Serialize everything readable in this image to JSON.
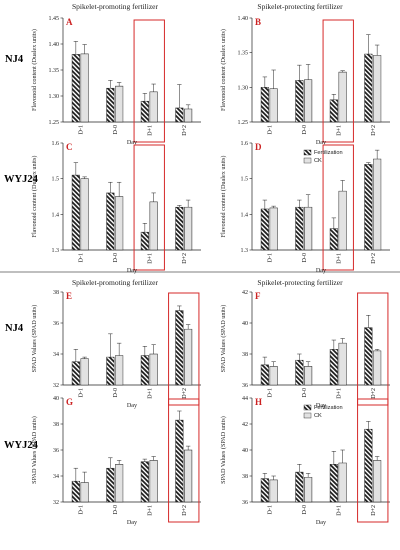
{
  "figure": {
    "section_titles": [
      "Spikelet-promoting fertilizer",
      "Spikelet-protecting fertilizer",
      "Spikelet-promoting fertilizer",
      "Spikelet-protecting fertilizer"
    ],
    "variety_labels": [
      "NJ4",
      "WYJ24",
      "NJ4",
      "WYJ24"
    ],
    "colors": {
      "panel_letter": "#cc2222",
      "variety": "#cc2222",
      "highlight_box": "#d62a2a",
      "bar_edge": "#222222"
    }
  },
  "chart_data": [
    {
      "panel": "A",
      "type": "bar",
      "ylabel": "Flavonoid content (Dualex units)",
      "xlabel": "Day",
      "categories": [
        "D-1",
        "D-0",
        "D+1",
        "D+2"
      ],
      "ylim": [
        1.25,
        1.45
      ],
      "yticks": [
        "1.25",
        "1.30",
        "1.35",
        "1.40",
        "1.45"
      ],
      "series": [
        {
          "values": [
            1.38,
            1.315,
            1.29,
            1.277
          ],
          "errors": [
            0.025,
            0.015,
            0.015,
            0.045
          ]
        },
        {
          "values": [
            1.381,
            1.319,
            1.308,
            1.275
          ],
          "errors": [
            0.018,
            0.007,
            0.015,
            0.008
          ]
        }
      ],
      "highlight": 2
    },
    {
      "panel": "B",
      "type": "bar",
      "ylabel": "Flavonoid content (Dualex units)",
      "xlabel": "Day",
      "categories": [
        "D-1",
        "D-0",
        "D+1",
        "D+2"
      ],
      "ylim": [
        1.25,
        1.4
      ],
      "yticks": [
        "1.25",
        "1.30",
        "1.35",
        "1.40"
      ],
      "series": [
        {
          "values": [
            1.3,
            1.31,
            1.282,
            1.348
          ],
          "errors": [
            0.015,
            0.022,
            0.008,
            0.028
          ]
        },
        {
          "values": [
            1.298,
            1.311,
            1.322,
            1.346
          ],
          "errors": [
            0.027,
            0.022,
            0.002,
            0.015
          ]
        }
      ],
      "highlight": 2
    },
    {
      "panel": "C",
      "type": "bar",
      "ylabel": "Flavonoid content (Dualex units)",
      "xlabel": "Day",
      "categories": [
        "D-1",
        "D-0",
        "D+1",
        "D+2"
      ],
      "ylim": [
        1.3,
        1.6
      ],
      "yticks": [
        "1.3",
        "1.4",
        "1.5",
        "1.6"
      ],
      "series": [
        {
          "values": [
            1.51,
            1.46,
            1.35,
            1.42
          ],
          "errors": [
            0.035,
            0.03,
            0.025,
            0.005
          ]
        },
        {
          "values": [
            1.5,
            1.45,
            1.435,
            1.42
          ],
          "errors": [
            0.005,
            0.04,
            0.025,
            0.02
          ]
        }
      ],
      "highlight": 2
    },
    {
      "panel": "D",
      "type": "bar",
      "ylabel": "Flavonoid content (Dualex units)",
      "xlabel": "Day",
      "categories": [
        "D-1",
        "D-0",
        "D+1",
        "D+2"
      ],
      "ylim": [
        1.3,
        1.6
      ],
      "yticks": [
        "1.3",
        "1.4",
        "1.5",
        "1.6"
      ],
      "legend": [
        "Fertilization",
        "CK"
      ],
      "series": [
        {
          "values": [
            1.415,
            1.42,
            1.36,
            1.54
          ],
          "errors": [
            0.025,
            0.02,
            0.03,
            0.005
          ]
        },
        {
          "values": [
            1.418,
            1.42,
            1.465,
            1.555
          ],
          "errors": [
            0.005,
            0.035,
            0.03,
            0.025
          ]
        }
      ],
      "highlight": 2
    },
    {
      "panel": "E",
      "type": "bar",
      "ylabel": "SPAD Values (SPAD units)",
      "xlabel": "Day",
      "categories": [
        "D-1",
        "D-0",
        "D+1",
        "D+2"
      ],
      "ylim": [
        32,
        38
      ],
      "yticks": [
        "32",
        "34",
        "36",
        "38"
      ],
      "series": [
        {
          "values": [
            33.5,
            33.8,
            33.9,
            36.8
          ],
          "errors": [
            0.8,
            1.5,
            0.6,
            0.3
          ]
        },
        {
          "values": [
            33.7,
            33.9,
            34.0,
            35.6
          ],
          "errors": [
            0.1,
            0.8,
            0.6,
            0.3
          ]
        }
      ],
      "highlight": 3
    },
    {
      "panel": "F",
      "type": "bar",
      "ylabel": "SPAD Values (SPAD units)",
      "xlabel": "Day",
      "categories": [
        "D-1",
        "D-0",
        "D+1",
        "D+2"
      ],
      "ylim": [
        36,
        42
      ],
      "yticks": [
        "36",
        "38",
        "40",
        "42"
      ],
      "series": [
        {
          "values": [
            37.3,
            37.6,
            38.3,
            39.7
          ],
          "errors": [
            0.5,
            0.4,
            0.6,
            0.8
          ]
        },
        {
          "values": [
            37.2,
            37.2,
            38.7,
            38.2
          ],
          "errors": [
            0.3,
            0.3,
            0.3,
            0.1
          ]
        }
      ],
      "highlight": 3
    },
    {
      "panel": "G",
      "type": "bar",
      "ylabel": "SPAD Values (SPAD units)",
      "xlabel": "Day",
      "categories": [
        "D-1",
        "D-0",
        "D+1",
        "D+2"
      ],
      "ylim": [
        32,
        40
      ],
      "yticks": [
        "32",
        "34",
        "36",
        "38",
        "40"
      ],
      "series": [
        {
          "values": [
            33.6,
            34.6,
            35.1,
            38.3
          ],
          "errors": [
            1.0,
            0.8,
            0.2,
            0.7
          ]
        },
        {
          "values": [
            33.5,
            34.9,
            35.2,
            36.0
          ],
          "errors": [
            0.8,
            0.3,
            0.3,
            0.3
          ]
        }
      ],
      "highlight": 3
    },
    {
      "panel": "H",
      "type": "bar",
      "ylabel": "SPAD Values (SPAD units)",
      "xlabel": "Day",
      "categories": [
        "D-1",
        "D-0",
        "D+1",
        "D+2"
      ],
      "ylim": [
        36,
        44
      ],
      "yticks": [
        "36",
        "38",
        "40",
        "42",
        "44"
      ],
      "legend": [
        "Fertilization",
        "CK"
      ],
      "series": [
        {
          "values": [
            37.8,
            38.3,
            38.9,
            41.6
          ],
          "errors": [
            0.4,
            0.6,
            1.0,
            0.6
          ]
        },
        {
          "values": [
            37.7,
            37.9,
            39.0,
            39.2
          ],
          "errors": [
            0.3,
            0.3,
            1.0,
            0.3
          ]
        }
      ],
      "highlight": 3
    }
  ]
}
